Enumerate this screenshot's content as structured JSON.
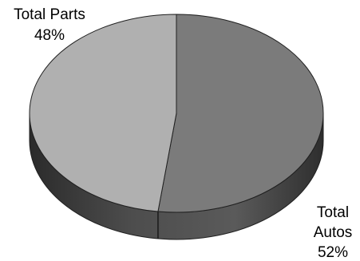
{
  "chart_data": {
    "type": "pie",
    "style": "3d",
    "categories": [
      "Total Autos",
      "Total Parts"
    ],
    "values": [
      52,
      48
    ],
    "labels": [
      {
        "name": "Total Autos",
        "value_text": "52%"
      },
      {
        "name": "Total Parts",
        "value_text": "48%"
      }
    ],
    "title": "",
    "legend": "none",
    "grid": false,
    "colors": {
      "Total Autos": {
        "top": "#7b7b7b",
        "side": "#4a4a4a"
      },
      "Total Parts": {
        "top": "#b0b0b0",
        "side": "#454545"
      },
      "outline": "#202020"
    }
  }
}
